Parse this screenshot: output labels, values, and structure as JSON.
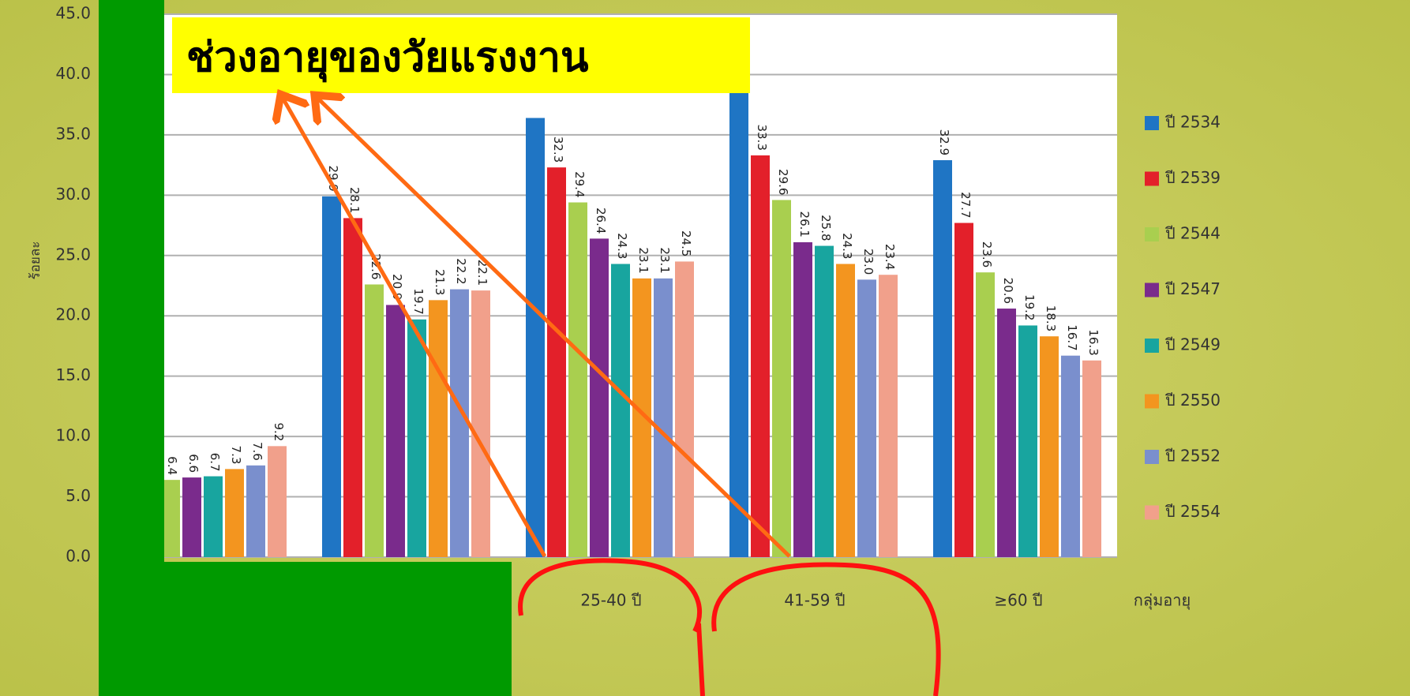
{
  "chart_data": {
    "type": "bar",
    "annotation": "ช่วงอายุของวัยแรงงาน",
    "y_label": "ร้อยละ",
    "x_label": "กลุ่มอายุ",
    "categories": [
      null,
      null,
      "25-40 ปี",
      "41-59 ปี",
      "≥60 ปี"
    ],
    "series": [
      {
        "name": "ปี 2534",
        "color": "#1f75c4",
        "values": [
          null,
          29.9,
          36.4,
          38.5,
          32.9
        ],
        "value_labels": [
          null,
          "29.9",
          null,
          null,
          "32.9"
        ]
      },
      {
        "name": "ปี 2539",
        "color": "#e3202a",
        "values": [
          null,
          28.1,
          32.3,
          33.3,
          27.7
        ],
        "value_labels": [
          null,
          "28.1",
          "32.3",
          "33.3",
          "27.7"
        ]
      },
      {
        "name": "ปี 2544",
        "color": "#a9cf4f",
        "values": [
          6.4,
          22.6,
          29.4,
          29.6,
          23.6
        ],
        "value_labels": [
          "6.4",
          "22.6",
          "29.4",
          "29.6",
          "23.6"
        ]
      },
      {
        "name": "ปี 2547",
        "color": "#7a2b8c",
        "values": [
          6.6,
          20.9,
          26.4,
          26.1,
          20.6
        ],
        "value_labels": [
          "6.6",
          "20.9",
          "26.4",
          "26.1",
          "20.6"
        ]
      },
      {
        "name": "ปี 2549",
        "color": "#18a59f",
        "values": [
          6.7,
          19.7,
          24.3,
          25.8,
          19.2
        ],
        "value_labels": [
          "6.7",
          "19.7",
          "24.3",
          "25.8",
          "19.2"
        ]
      },
      {
        "name": "ปี 2550",
        "color": "#f3951f",
        "values": [
          7.3,
          21.3,
          23.1,
          24.3,
          18.3
        ],
        "value_labels": [
          "7.3",
          "21.3",
          "23.1",
          "24.3",
          "18.3"
        ]
      },
      {
        "name": "ปี 2552",
        "color": "#7a8fcd",
        "values": [
          7.6,
          22.2,
          23.1,
          23.0,
          16.7
        ],
        "value_labels": [
          "7.6",
          "22.2",
          "23.1",
          "23.0",
          "16.7"
        ]
      },
      {
        "name": "ปี 2554",
        "color": "#f1a08b",
        "values": [
          9.2,
          22.1,
          24.5,
          23.4,
          16.3
        ],
        "value_labels": [
          "9.2",
          "22.1",
          "24.5",
          "23.4",
          "16.3"
        ]
      }
    ],
    "ylim": [
      0,
      45
    ],
    "yticks": [
      {
        "value": 0,
        "label": "0.0"
      },
      {
        "value": 5,
        "label": "5.0"
      },
      {
        "value": 10,
        "label": "10.0"
      },
      {
        "value": 15,
        "label": "15.0"
      },
      {
        "value": 20,
        "label": "20.0"
      },
      {
        "value": 25,
        "label": "25.0"
      },
      {
        "value": 30,
        "label": "30.0"
      },
      {
        "value": 35,
        "label": "35.0"
      },
      {
        "value": 40,
        "label": "40.0"
      },
      {
        "value": 45,
        "label": "45.0"
      }
    ],
    "grid": true,
    "legend": "right"
  }
}
